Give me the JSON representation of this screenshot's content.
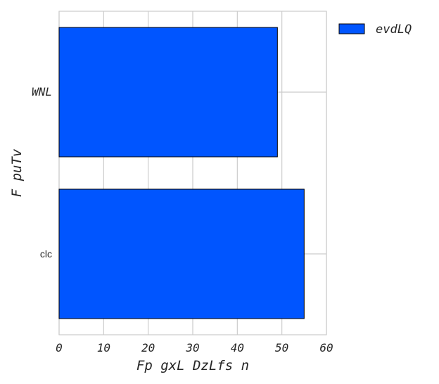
{
  "chart_data": {
    "type": "bar",
    "orientation": "horizontal",
    "categories": [
      "WNL",
      "clc"
    ],
    "series": [
      {
        "name": "evdLQ",
        "values": [
          49,
          55
        ]
      }
    ],
    "xlabel": "Fp gxL DzLfs n",
    "ylabel": "F puTv",
    "xlim": [
      0,
      60
    ],
    "xticks": [
      "0",
      "10",
      "20",
      "30",
      "40",
      "50",
      "60"
    ],
    "grid": true,
    "legend_position": "outside-top-right",
    "colors": {
      "bar": "#0055ff",
      "bar_edge": "#000000",
      "grid": "#cccccc",
      "frame": "#cccccc"
    }
  }
}
